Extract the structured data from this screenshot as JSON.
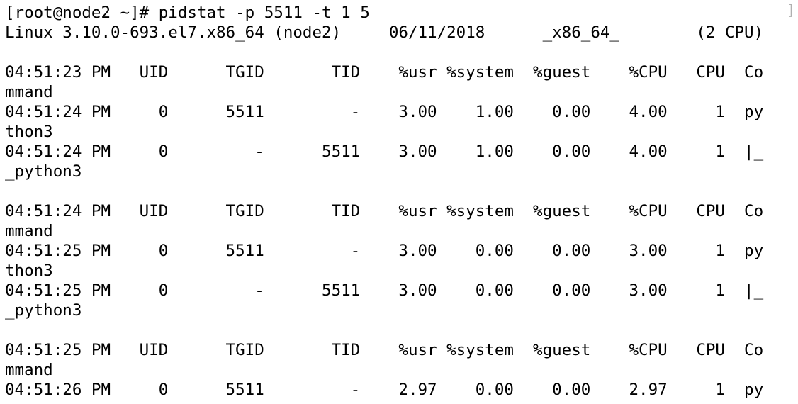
{
  "terminal": {
    "clipped_top_text": "",
    "prompt_line": "[root@node2 ~]# pidstat -p 5511 -t 1 5",
    "right_bracket": "]",
    "lines": [
      "Linux 3.10.0-693.el7.x86_64 (node2)     06/11/2018      _x86_64_        (2 CPU)",
      "",
      "04:51:23 PM   UID      TGID       TID    %usr %system  %guest    %CPU   CPU  Co",
      "mmand",
      "04:51:24 PM     0      5511         -    3.00    1.00    0.00    4.00     1  py",
      "thon3",
      "04:51:24 PM     0         -      5511    3.00    1.00    0.00    4.00     1  |_",
      "_python3",
      "",
      "04:51:24 PM   UID      TGID       TID    %usr %system  %guest    %CPU   CPU  Co",
      "mmand",
      "04:51:25 PM     0      5511         -    3.00    0.00    0.00    3.00     1  py",
      "thon3",
      "04:51:25 PM     0         -      5511    3.00    0.00    0.00    3.00     1  |_",
      "_python3",
      "",
      "04:51:25 PM   UID      TGID       TID    %usr %system  %guest    %CPU   CPU  Co",
      "mmand",
      "04:51:26 PM     0      5511         -    2.97    0.00    0.00    2.97     1  py"
    ]
  }
}
